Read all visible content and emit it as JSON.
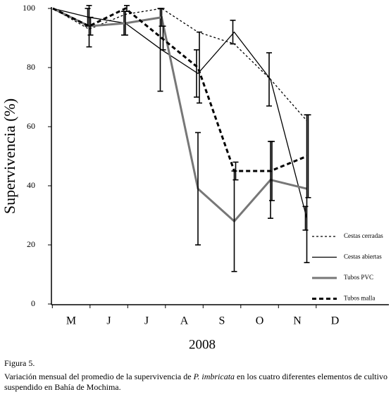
{
  "chart_data": {
    "type": "line",
    "ylabel": "Supervivencia (%)",
    "xlabel": "2008",
    "categories": [
      "M",
      "J",
      "J",
      "A",
      "S",
      "O",
      "N",
      "D"
    ],
    "ylim": [
      0,
      100
    ],
    "yticks": [
      0,
      20,
      40,
      60,
      80,
      100
    ],
    "series": [
      {
        "name": "Cestas cerradas",
        "color": "#000000",
        "style": "dotted",
        "width": 1.3,
        "values": [
          100,
          93,
          98,
          100,
          92,
          88,
          76,
          62
        ],
        "errors": [
          null,
          null,
          null,
          null,
          null,
          null,
          null,
          null
        ]
      },
      {
        "name": "Cestas abiertas",
        "color": "#000000",
        "style": "solid",
        "width": 1.3,
        "values": [
          100,
          97,
          95,
          86,
          78,
          92,
          76,
          29
        ],
        "errors": [
          null,
          3,
          4,
          14,
          8,
          4,
          9,
          4
        ]
      },
      {
        "name": "Tubos PVC",
        "color": "#777777",
        "style": "solid",
        "width": 3,
        "values": [
          100,
          94,
          95,
          97,
          39,
          28,
          42,
          39
        ],
        "errors": [
          null,
          7,
          4,
          3,
          19,
          17,
          13,
          25
        ]
      },
      {
        "name": "Tubos malla",
        "color": "#000000",
        "style": "dashed",
        "width": 3,
        "values": [
          100,
          94,
          100,
          90,
          80,
          45,
          45,
          50
        ],
        "errors": [
          null,
          3,
          1,
          4,
          12,
          3,
          10,
          14
        ]
      }
    ],
    "figure_label": "Figura 5.",
    "caption": {
      "before": "Variación mensual del promedio de la supervivencia de",
      "italic": "P. imbricata",
      "after": "en los cuatro diferentes elementos de cultivo suspendido en Bahía de Mochima."
    }
  }
}
